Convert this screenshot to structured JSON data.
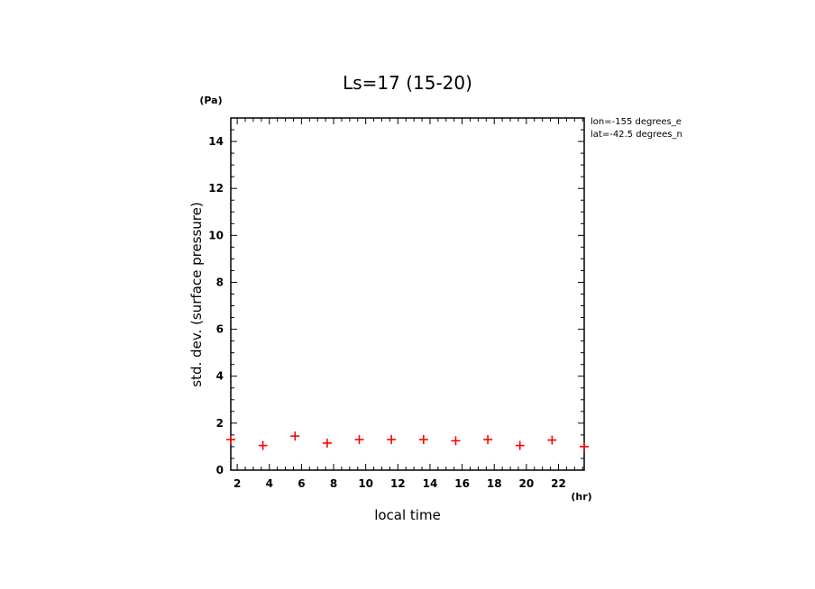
{
  "chart_data": {
    "type": "scatter",
    "title": "Ls=17 (15-20)",
    "xlabel": "local time",
    "ylabel": "std. dev. (surface pressure)",
    "x_unit": "(hr)",
    "y_unit": "(Pa)",
    "xlim": [
      1.6,
      23.6
    ],
    "ylim": [
      0,
      15
    ],
    "x_ticks": [
      2,
      4,
      6,
      8,
      10,
      12,
      14,
      16,
      18,
      20,
      22
    ],
    "y_ticks": [
      0,
      2,
      4,
      6,
      8,
      10,
      12,
      14
    ],
    "marker": "+",
    "color": "#ff0000",
    "x": [
      1.6,
      3.6,
      5.6,
      7.6,
      9.6,
      11.6,
      13.6,
      15.6,
      17.6,
      19.6,
      21.6,
      23.6
    ],
    "y": [
      1.3,
      1.05,
      1.45,
      1.15,
      1.3,
      1.3,
      1.3,
      1.25,
      1.3,
      1.05,
      1.28,
      1.0
    ],
    "annotations": [
      "lon=-155 degrees_e",
      "lat=-42.5 degrees_n"
    ]
  }
}
